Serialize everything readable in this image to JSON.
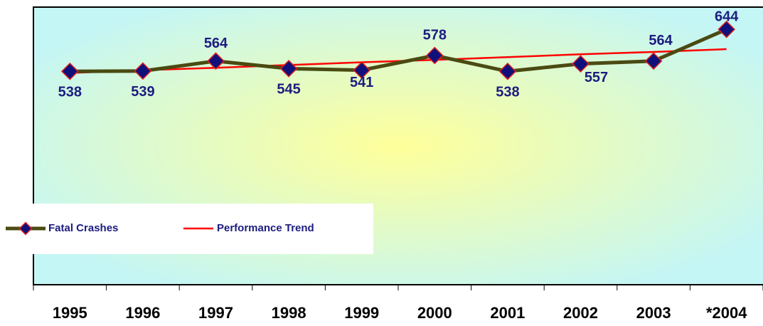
{
  "chart_data": {
    "type": "line",
    "categories": [
      "1995",
      "1996",
      "1997",
      "1998",
      "1999",
      "2000",
      "2001",
      "2002",
      "2003",
      "*2004"
    ],
    "series": [
      {
        "name": "Fatal Crashes",
        "color": "#4a4a12",
        "marker_color": "#10107a",
        "values": [
          538,
          539,
          564,
          545,
          541,
          578,
          538,
          557,
          564,
          644
        ]
      },
      {
        "name": "Performance Trend",
        "color": "#ff0000",
        "values": [
          534,
          541,
          547,
          554,
          561,
          567,
          574,
          581,
          587,
          594
        ]
      }
    ],
    "ylim": [
      0,
      700
    ],
    "legend": "lower left"
  }
}
